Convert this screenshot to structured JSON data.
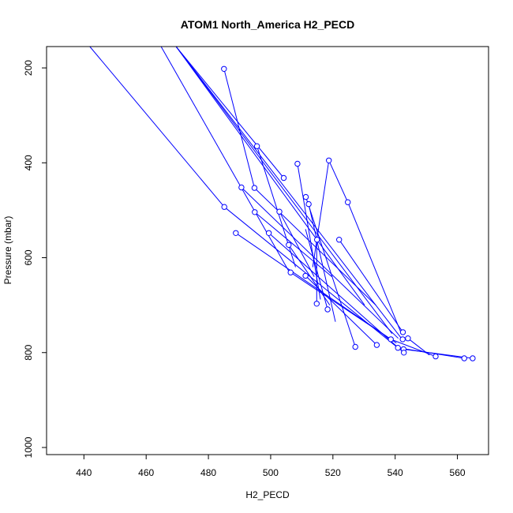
{
  "chart_data": {
    "type": "line",
    "title": "ATOM1 North_America H2_PECD",
    "xlabel": "H2_PECD",
    "ylabel": "Pressure (mbar)",
    "xlim": [
      428,
      570
    ],
    "ylim": [
      1015,
      155
    ],
    "y_reversed": true,
    "x_ticks": [
      440,
      460,
      480,
      500,
      520,
      540,
      560
    ],
    "y_ticks": [
      200,
      400,
      600,
      800,
      1000
    ],
    "grid": false,
    "series_color": "#0000ff",
    "marker": "open-circle",
    "segments": [
      {
        "x": [
          441.9,
          485.1
        ],
        "y": [
          155,
          493
        ]
      },
      {
        "x": [
          464.8,
          505.8
        ],
        "y": [
          155,
          628
        ]
      },
      {
        "x": [
          469.6,
          504.2
        ],
        "y": [
          155,
          432
        ]
      },
      {
        "x": [
          469.6,
          539.0
        ],
        "y": [
          155,
          760
        ]
      },
      {
        "x": [
          469.6,
          530.2
        ],
        "y": [
          155,
          700
        ]
      },
      {
        "x": [
          469.6,
          542.0
        ],
        "y": [
          155,
          770
        ]
      },
      {
        "x": [
          485.0,
          494.8
        ],
        "y": [
          202,
          453
        ]
      },
      {
        "x": [
          495.6,
          508.0
        ],
        "y": [
          365,
          620
        ]
      },
      {
        "x": [
          508.6,
          516.0
        ],
        "y": [
          402,
          688
        ]
      },
      {
        "x": [
          518.7,
          513.5
        ],
        "y": [
          395,
          620
        ]
      },
      {
        "x": [
          518.7,
          524.8
        ],
        "y": [
          395,
          483
        ]
      },
      {
        "x": [
          524.8,
          542.0
        ],
        "y": [
          483,
          760
        ]
      },
      {
        "x": [
          511.3,
          527.2
        ],
        "y": [
          472,
          788
        ]
      },
      {
        "x": [
          512.2,
          520.8
        ],
        "y": [
          487,
          735
        ]
      },
      {
        "x": [
          490.6,
          541.0
        ],
        "y": [
          452,
          770
        ]
      },
      {
        "x": [
          494.8,
          533.8
        ],
        "y": [
          453,
          700
        ]
      },
      {
        "x": [
          485.1,
          540.9
        ],
        "y": [
          493,
          790
        ]
      },
      {
        "x": [
          494.9,
          519.7
        ],
        "y": [
          504,
          640
        ]
      },
      {
        "x": [
          502.8,
          514.0
        ],
        "y": [
          503,
          640
        ]
      },
      {
        "x": [
          488.8,
          540.4
        ],
        "y": [
          548,
          780
        ]
      },
      {
        "x": [
          499.4,
          542.8
        ],
        "y": [
          548,
          800
        ]
      },
      {
        "x": [
          505.8,
          519.0
        ],
        "y": [
          573,
          700
        ]
      },
      {
        "x": [
          506.4,
          538.6
        ],
        "y": [
          631,
          772
        ]
      },
      {
        "x": [
          511.2,
          534.1
        ],
        "y": [
          638,
          784
        ]
      },
      {
        "x": [
          514.8,
          514.8
        ],
        "y": [
          697,
          560
        ]
      },
      {
        "x": [
          518.3,
          511.2
        ],
        "y": [
          709,
          540
        ]
      },
      {
        "x": [
          522.0,
          542.5
        ],
        "y": [
          562,
          757
        ]
      },
      {
        "x": [
          538.6,
          553.0
        ],
        "y": [
          772,
          808
        ]
      },
      {
        "x": [
          540.9,
          562.2
        ],
        "y": [
          790,
          812
        ]
      },
      {
        "x": [
          542.7,
          564.9
        ],
        "y": [
          793,
          812
        ]
      },
      {
        "x": [
          544.1,
          551.0
        ],
        "y": [
          770,
          805
        ]
      }
    ],
    "points": [
      {
        "x": 485.0,
        "y": 202
      },
      {
        "x": 495.6,
        "y": 365
      },
      {
        "x": 508.6,
        "y": 402
      },
      {
        "x": 518.7,
        "y": 395
      },
      {
        "x": 504.2,
        "y": 432
      },
      {
        "x": 490.6,
        "y": 452
      },
      {
        "x": 494.8,
        "y": 453
      },
      {
        "x": 511.3,
        "y": 472
      },
      {
        "x": 524.8,
        "y": 483
      },
      {
        "x": 512.2,
        "y": 487
      },
      {
        "x": 485.1,
        "y": 493
      },
      {
        "x": 502.8,
        "y": 503
      },
      {
        "x": 494.9,
        "y": 504
      },
      {
        "x": 499.4,
        "y": 548
      },
      {
        "x": 488.8,
        "y": 548
      },
      {
        "x": 522.0,
        "y": 562
      },
      {
        "x": 514.9,
        "y": 562
      },
      {
        "x": 505.8,
        "y": 573
      },
      {
        "x": 506.4,
        "y": 631
      },
      {
        "x": 511.2,
        "y": 638
      },
      {
        "x": 514.8,
        "y": 697
      },
      {
        "x": 518.3,
        "y": 709
      },
      {
        "x": 542.5,
        "y": 757
      },
      {
        "x": 538.6,
        "y": 772
      },
      {
        "x": 542.4,
        "y": 772
      },
      {
        "x": 544.1,
        "y": 770
      },
      {
        "x": 534.1,
        "y": 784
      },
      {
        "x": 527.2,
        "y": 788
      },
      {
        "x": 540.9,
        "y": 790
      },
      {
        "x": 542.7,
        "y": 793
      },
      {
        "x": 542.8,
        "y": 800
      },
      {
        "x": 553.0,
        "y": 808
      },
      {
        "x": 562.2,
        "y": 812
      },
      {
        "x": 564.9,
        "y": 812
      }
    ]
  }
}
